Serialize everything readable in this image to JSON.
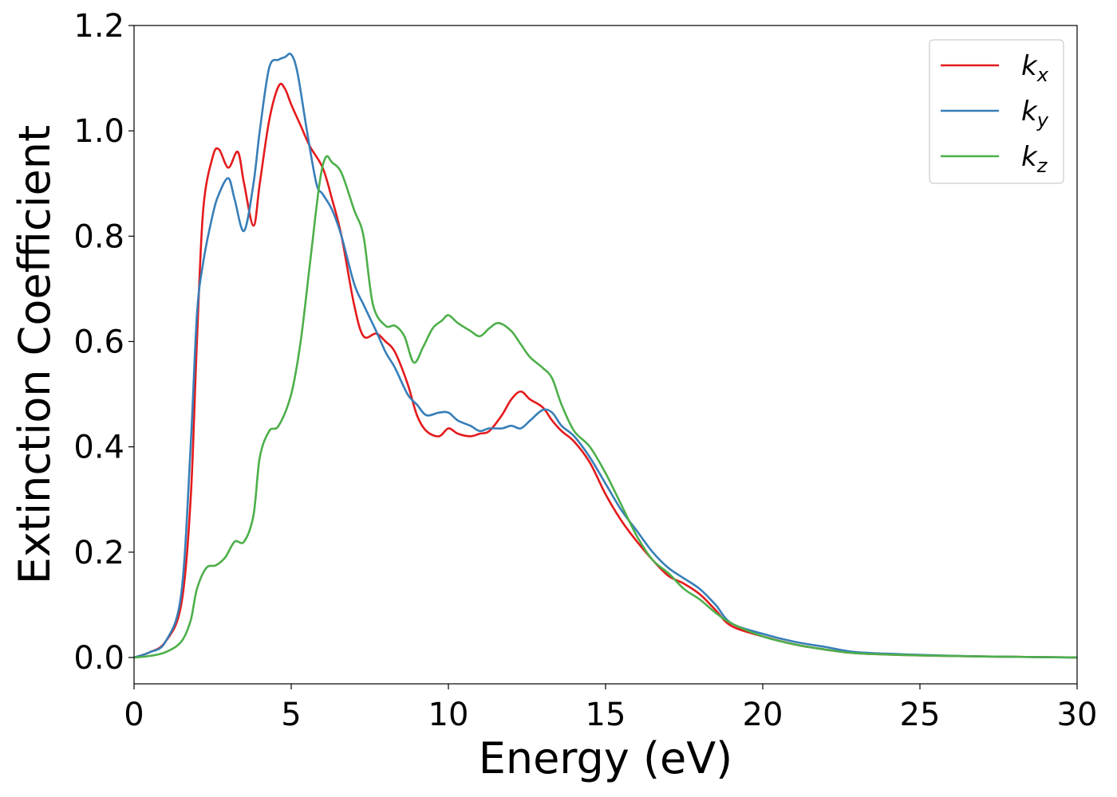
{
  "chart_data": {
    "type": "line",
    "title": "",
    "xlabel": "Energy (eV)",
    "ylabel": "Extinction Coefficient",
    "xlim": [
      0,
      30
    ],
    "ylim": [
      -0.05,
      1.2
    ],
    "xticks": [
      0,
      5,
      10,
      15,
      20,
      25,
      30
    ],
    "xtick_labels": [
      "0",
      "5",
      "10",
      "15",
      "20",
      "25",
      "30"
    ],
    "yticks": [
      0.0,
      0.2,
      0.4,
      0.6,
      0.8,
      1.0,
      1.2
    ],
    "ytick_labels": [
      "0.0",
      "0.2",
      "0.4",
      "0.6",
      "0.8",
      "1.0",
      "1.2"
    ],
    "grid": false,
    "legend_position": "top-right",
    "series": [
      {
        "name": "k_x",
        "label_base": "k",
        "label_sub": "x",
        "color": "#e41a1c",
        "x": [
          0,
          0.5,
          1.0,
          1.5,
          1.8,
          2.0,
          2.2,
          2.5,
          2.7,
          3.0,
          3.3,
          3.5,
          3.8,
          4.0,
          4.3,
          4.6,
          4.8,
          5.0,
          5.3,
          5.6,
          6.0,
          6.3,
          6.6,
          7.0,
          7.3,
          7.7,
          8.0,
          8.3,
          8.7,
          9.0,
          9.3,
          9.7,
          10.0,
          10.3,
          10.7,
          11.0,
          11.3,
          11.7,
          12.0,
          12.3,
          12.6,
          13.0,
          13.3,
          13.6,
          14.0,
          14.5,
          15.0,
          15.5,
          16.0,
          16.5,
          17.0,
          17.5,
          18.0,
          18.5,
          19.0,
          20.0,
          21.0,
          22.0,
          23.0,
          25.0,
          27.0,
          30.0
        ],
        "y": [
          0.0,
          0.01,
          0.03,
          0.1,
          0.3,
          0.6,
          0.85,
          0.95,
          0.965,
          0.93,
          0.96,
          0.9,
          0.82,
          0.9,
          1.02,
          1.085,
          1.08,
          1.05,
          1.01,
          0.97,
          0.93,
          0.87,
          0.8,
          0.67,
          0.61,
          0.615,
          0.6,
          0.58,
          0.52,
          0.46,
          0.43,
          0.42,
          0.435,
          0.425,
          0.42,
          0.425,
          0.43,
          0.46,
          0.49,
          0.505,
          0.49,
          0.475,
          0.45,
          0.43,
          0.41,
          0.37,
          0.31,
          0.26,
          0.22,
          0.185,
          0.155,
          0.14,
          0.12,
          0.09,
          0.06,
          0.04,
          0.025,
          0.015,
          0.008,
          0.004,
          0.002,
          0.0
        ]
      },
      {
        "name": "k_y",
        "label_base": "k",
        "label_sub": "y",
        "color": "#377eb8",
        "x": [
          0,
          0.5,
          1.0,
          1.5,
          1.8,
          2.0,
          2.2,
          2.5,
          2.7,
          3.0,
          3.2,
          3.5,
          3.8,
          4.0,
          4.3,
          4.6,
          4.8,
          5.0,
          5.2,
          5.5,
          5.8,
          6.0,
          6.3,
          6.6,
          7.0,
          7.3,
          7.7,
          8.0,
          8.3,
          8.7,
          9.0,
          9.3,
          9.7,
          10.0,
          10.3,
          10.7,
          11.0,
          11.3,
          11.7,
          12.0,
          12.3,
          12.6,
          13.0,
          13.3,
          13.6,
          14.0,
          14.5,
          15.0,
          15.5,
          16.0,
          16.5,
          17.0,
          17.5,
          18.0,
          18.5,
          19.0,
          20.0,
          21.0,
          22.0,
          23.0,
          25.0,
          27.0,
          30.0
        ],
        "y": [
          0.0,
          0.01,
          0.03,
          0.12,
          0.4,
          0.65,
          0.75,
          0.84,
          0.88,
          0.91,
          0.87,
          0.81,
          0.9,
          1.0,
          1.12,
          1.135,
          1.14,
          1.145,
          1.11,
          1.0,
          0.9,
          0.88,
          0.85,
          0.8,
          0.71,
          0.67,
          0.62,
          0.58,
          0.55,
          0.5,
          0.48,
          0.46,
          0.465,
          0.465,
          0.45,
          0.44,
          0.43,
          0.435,
          0.435,
          0.44,
          0.435,
          0.45,
          0.47,
          0.465,
          0.44,
          0.42,
          0.38,
          0.33,
          0.28,
          0.24,
          0.2,
          0.17,
          0.15,
          0.13,
          0.1,
          0.065,
          0.045,
          0.03,
          0.02,
          0.01,
          0.005,
          0.002,
          0.0
        ]
      },
      {
        "name": "k_z",
        "label_base": "k",
        "label_sub": "z",
        "color": "#4daf4a",
        "x": [
          0,
          0.5,
          1.0,
          1.5,
          1.8,
          2.0,
          2.3,
          2.6,
          2.9,
          3.2,
          3.5,
          3.8,
          4.0,
          4.3,
          4.6,
          5.0,
          5.3,
          5.6,
          5.9,
          6.1,
          6.3,
          6.6,
          7.0,
          7.3,
          7.6,
          8.0,
          8.3,
          8.6,
          8.9,
          9.2,
          9.5,
          9.8,
          10.0,
          10.3,
          10.7,
          11.0,
          11.3,
          11.6,
          12.0,
          12.3,
          12.6,
          13.0,
          13.3,
          13.6,
          14.0,
          14.5,
          15.0,
          15.5,
          16.0,
          16.5,
          17.0,
          17.5,
          18.0,
          18.5,
          19.0,
          20.0,
          21.0,
          22.0,
          23.0,
          25.0,
          27.0,
          30.0
        ],
        "y": [
          0.0,
          0.003,
          0.01,
          0.03,
          0.07,
          0.13,
          0.17,
          0.175,
          0.19,
          0.22,
          0.22,
          0.27,
          0.38,
          0.43,
          0.44,
          0.5,
          0.6,
          0.75,
          0.9,
          0.95,
          0.94,
          0.92,
          0.85,
          0.8,
          0.67,
          0.63,
          0.63,
          0.61,
          0.56,
          0.59,
          0.625,
          0.64,
          0.65,
          0.635,
          0.62,
          0.61,
          0.625,
          0.635,
          0.62,
          0.595,
          0.57,
          0.55,
          0.53,
          0.48,
          0.43,
          0.4,
          0.35,
          0.29,
          0.23,
          0.185,
          0.16,
          0.13,
          0.11,
          0.085,
          0.065,
          0.04,
          0.025,
          0.015,
          0.008,
          0.004,
          0.002,
          0.0
        ]
      }
    ]
  }
}
